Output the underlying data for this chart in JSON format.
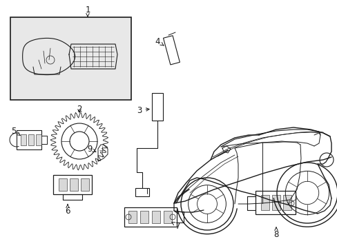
{
  "bg_color": "#ffffff",
  "line_color": "#1a1a1a",
  "box1_color": "#e8e8e8",
  "figsize": [
    4.89,
    3.6
  ],
  "dpi": 100
}
